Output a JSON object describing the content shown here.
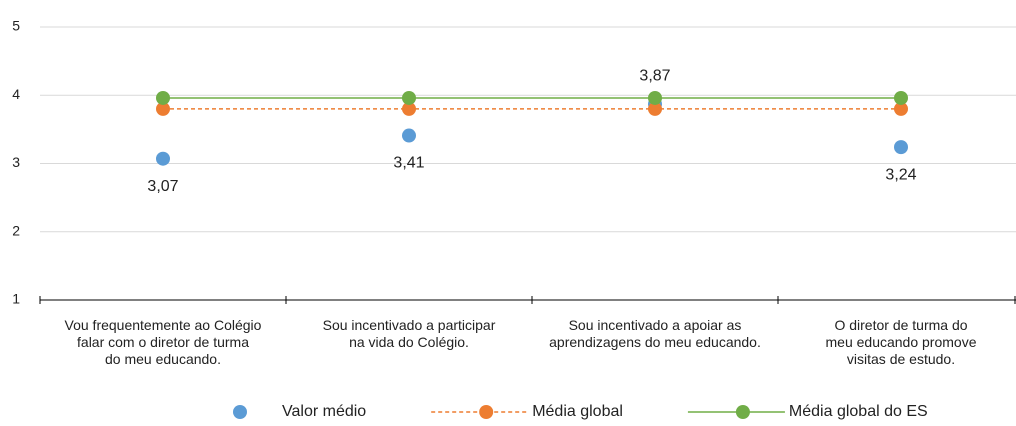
{
  "chart_data": {
    "type": "line",
    "categories": [
      "Vou frequentemente ao Colégio\nfalar com o diretor de turma\ndo meu educando.",
      "Sou incentivado a participar\nna vida do Colégio.",
      "Sou incentivado a apoiar as\naprendizagens do meu educando.",
      "O diretor de turma do\nmeu educando promove\nvisitas de estudo."
    ],
    "series": [
      {
        "name": "Valor médio",
        "color": "#5b9bd5",
        "show_line": false,
        "values": [
          3.07,
          3.41,
          3.87,
          3.24
        ],
        "value_labels": [
          "3,07",
          "3,41",
          "3,87",
          "3,24"
        ],
        "label_position": [
          "below",
          "below",
          "above",
          "below"
        ]
      },
      {
        "name": "Média global",
        "color": "#ed7d31",
        "show_line": true,
        "dash": true,
        "values": [
          3.8,
          3.8,
          3.8,
          3.8
        ]
      },
      {
        "name": "Média global do ES",
        "color": "#70ad47",
        "show_line": true,
        "dash": false,
        "values": [
          3.96,
          3.96,
          3.96,
          3.96
        ]
      }
    ],
    "ylim": [
      1,
      5
    ],
    "yticks": [
      1,
      2,
      3,
      4,
      5
    ],
    "grid": true,
    "legend": "bottom"
  }
}
